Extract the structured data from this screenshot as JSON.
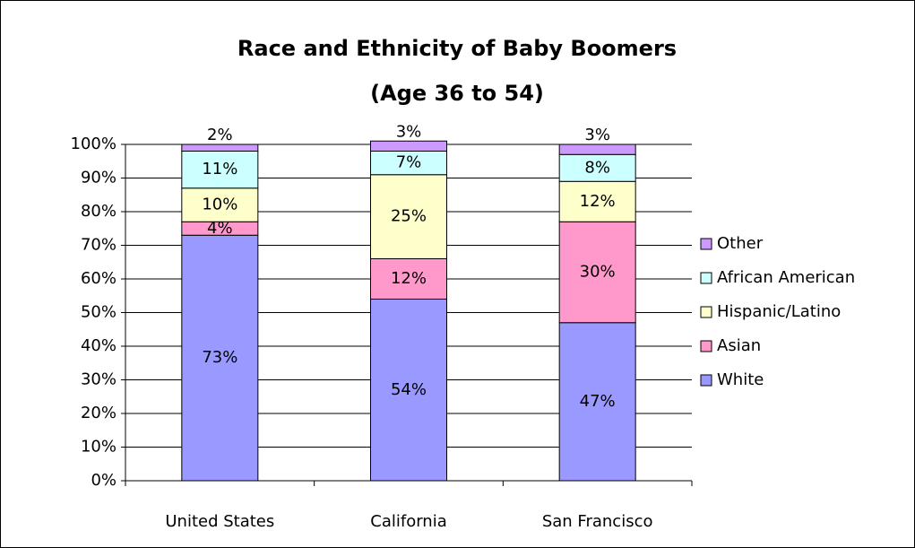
{
  "chart_data": {
    "type": "stacked_bar",
    "title": "Race and Ethnicity of Baby Boomers",
    "subtitle": "(Age 36 to 54)",
    "categories": [
      "United States",
      "California",
      "San Francisco"
    ],
    "series": [
      {
        "name": "White",
        "color": "#9999ff",
        "values": [
          73,
          54,
          47
        ],
        "value_labels": [
          "73%",
          "54%",
          "47%"
        ]
      },
      {
        "name": "Asian",
        "color": "#ff99cc",
        "values": [
          4,
          12,
          30
        ],
        "value_labels": [
          "4%",
          "12%",
          "30%"
        ]
      },
      {
        "name": "Hispanic/Latino",
        "color": "#ffffcc",
        "values": [
          10,
          25,
          12
        ],
        "value_labels": [
          "10%",
          "25%",
          "12%"
        ]
      },
      {
        "name": "African American",
        "color": "#ccffff",
        "values": [
          11,
          7,
          8
        ],
        "value_labels": [
          "11%",
          "7%",
          "8%"
        ]
      },
      {
        "name": "Other",
        "color": "#cc99ff",
        "values": [
          2,
          3,
          3
        ],
        "value_labels": [
          "2%",
          "3%",
          "3%"
        ]
      }
    ],
    "ylim": [
      0,
      100
    ],
    "yticks": [
      {
        "value": 0,
        "label": "0%"
      },
      {
        "value": 10,
        "label": "10%"
      },
      {
        "value": 20,
        "label": "20%"
      },
      {
        "value": 30,
        "label": "30%"
      },
      {
        "value": 40,
        "label": "40%"
      },
      {
        "value": 50,
        "label": "50%"
      },
      {
        "value": 60,
        "label": "60%"
      },
      {
        "value": 70,
        "label": "70%"
      },
      {
        "value": 80,
        "label": "80%"
      },
      {
        "value": 90,
        "label": "90%"
      },
      {
        "value": 100,
        "label": "100%"
      }
    ],
    "grid": true,
    "legend": "right"
  }
}
